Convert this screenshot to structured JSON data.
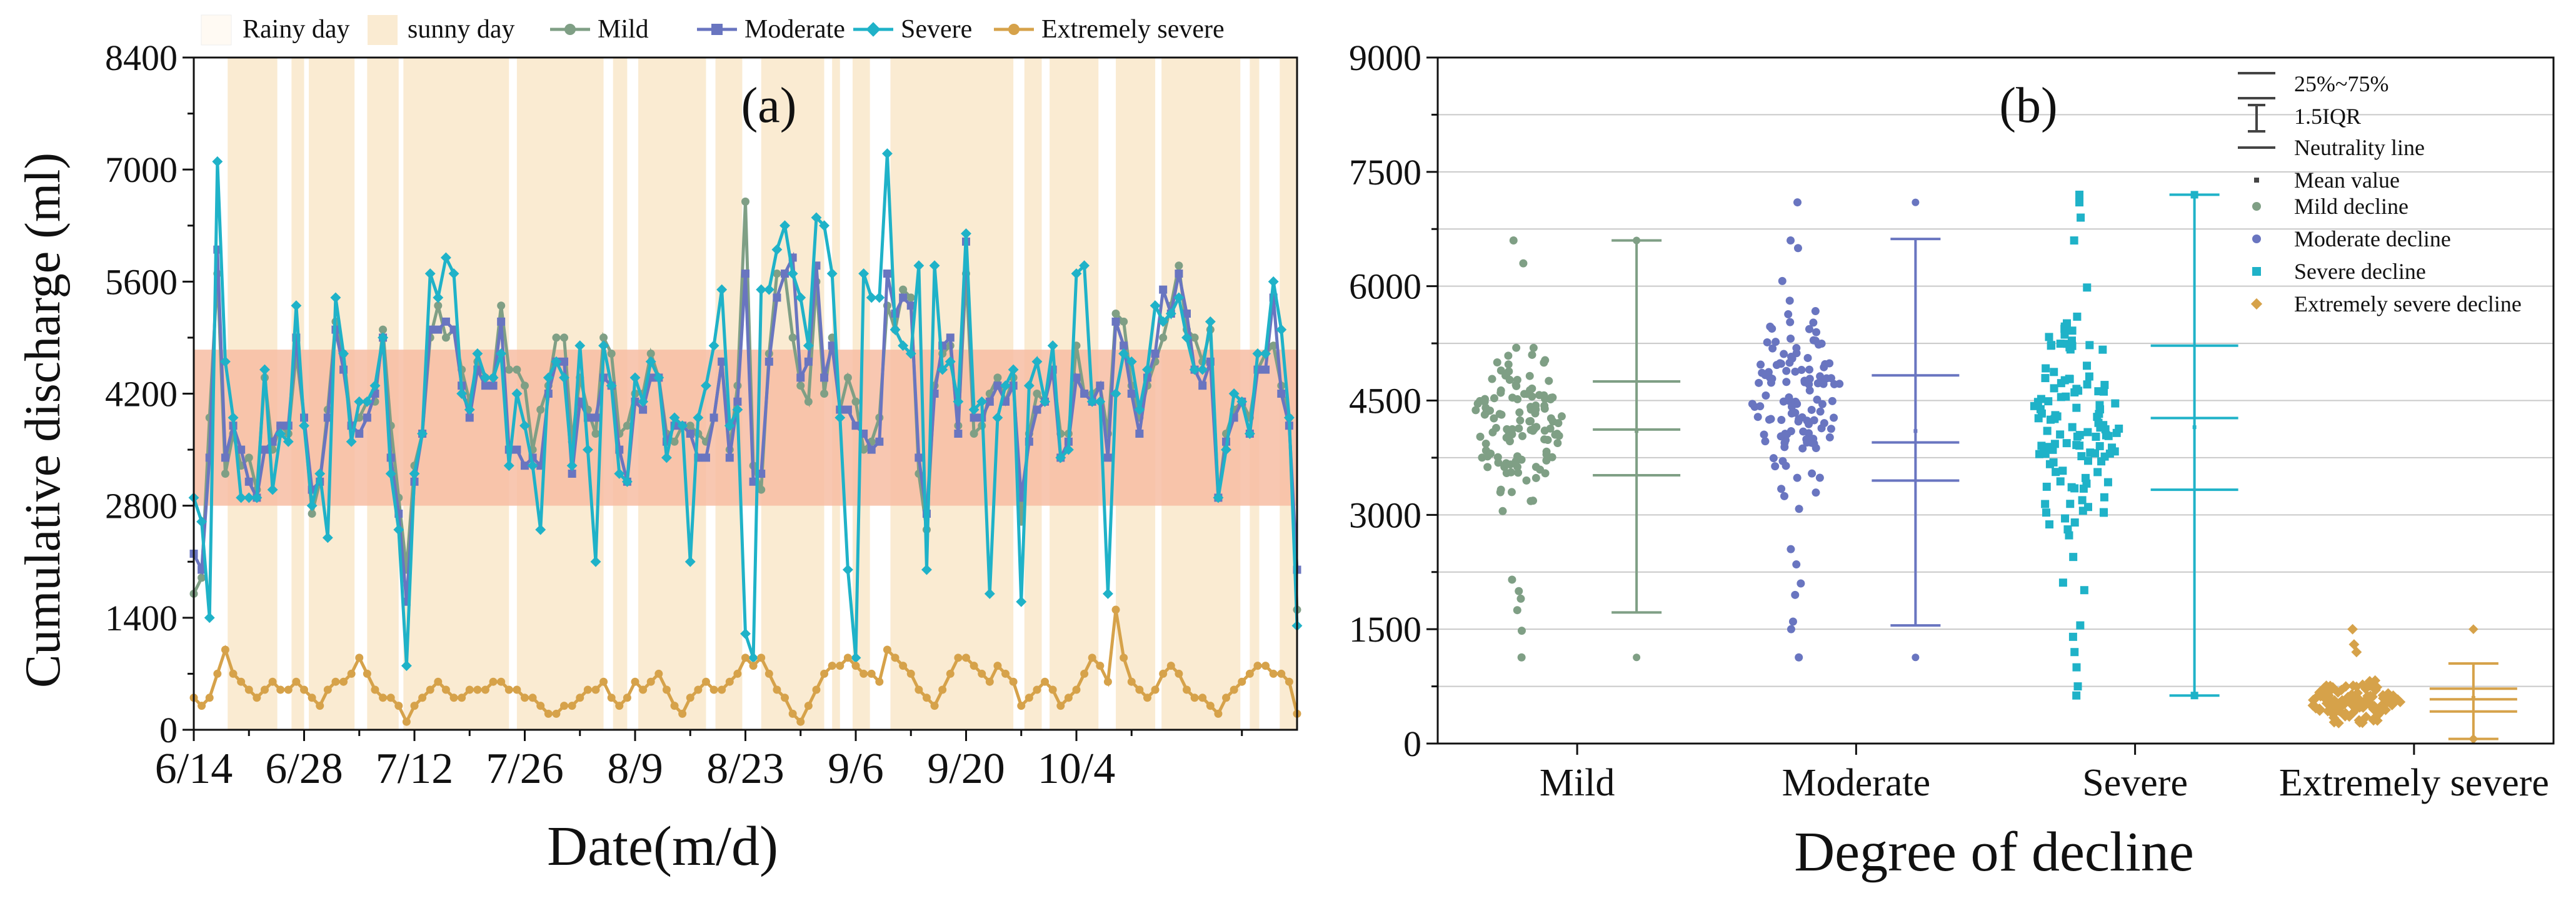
{
  "chart_data": [
    {
      "panel_label": "(a)",
      "type": "line",
      "xlabel": "Date(m/d)",
      "ylabel": "Cumulative discharge (ml)",
      "ylim": [
        0,
        8400
      ],
      "yticks": [
        0,
        1400,
        2800,
        4200,
        5600,
        7000,
        8400
      ],
      "x_day_range": [
        0,
        140
      ],
      "xticks": [
        {
          "day": 0,
          "label": "6/14"
        },
        {
          "day": 14,
          "label": "6/28"
        },
        {
          "day": 28,
          "label": "7/12"
        },
        {
          "day": 42,
          "label": "7/26"
        },
        {
          "day": 56,
          "label": "8/9"
        },
        {
          "day": 70,
          "label": "8/23"
        },
        {
          "day": 84,
          "label": "9/6"
        },
        {
          "day": 98,
          "label": "9/20"
        },
        {
          "day": 112,
          "label": "10/4"
        }
      ],
      "neutral_band": [
        2800,
        4750
      ],
      "rainy_day_label": "Rainy day",
      "sunny_day_label": "sunny day",
      "sunny_day_spans": [
        [
          4.3,
          10.6
        ],
        [
          12.4,
          14.0
        ],
        [
          14.6,
          20.4
        ],
        [
          22.0,
          26.0
        ],
        [
          26.6,
          40.0
        ],
        [
          41.0,
          52.0
        ],
        [
          53.2,
          55.0
        ],
        [
          56.4,
          65.0
        ],
        [
          66.2,
          69.6
        ],
        [
          72.0,
          80.0
        ],
        [
          81.0,
          82.0
        ],
        [
          83.6,
          85.8
        ],
        [
          88.4,
          104.0
        ],
        [
          105.4,
          107.6
        ],
        [
          108.6,
          114.8
        ],
        [
          117.0,
          122.0
        ],
        [
          122.8,
          132.8
        ],
        [
          134.0,
          135.2
        ],
        [
          137.8,
          140.0
        ]
      ],
      "series": [
        {
          "name": "Mild",
          "color": "#7f9f85",
          "marker": "circle",
          "values": [
            1700,
            1900,
            3900,
            5700,
            3200,
            3700,
            3300,
            3400,
            3000,
            4400,
            3500,
            3800,
            3700,
            4700,
            3900,
            2700,
            3100,
            4000,
            5100,
            4700,
            3800,
            3900,
            4100,
            4100,
            5000,
            3800,
            2900,
            2000,
            3300,
            3700,
            4900,
            5300,
            4900,
            5000,
            4500,
            4100,
            4600,
            4400,
            4400,
            5300,
            4500,
            4500,
            4300,
            3500,
            4000,
            4300,
            4900,
            4900,
            3600,
            4400,
            4000,
            3700,
            4900,
            4700,
            3700,
            3800,
            4200,
            4200,
            4700,
            4400,
            3700,
            3600,
            3800,
            3800,
            3700,
            3600,
            3900,
            4600,
            3500,
            4300,
            6600,
            3300,
            3000,
            4700,
            5700,
            5700,
            4900,
            4300,
            4100,
            5600,
            4200,
            4900,
            4000,
            4400,
            4100,
            3500,
            3600,
            3900,
            5300,
            5000,
            5500,
            5400,
            3200,
            2500,
            4300,
            4700,
            4800,
            3800,
            5700,
            3700,
            3800,
            4200,
            4400,
            4100,
            4400,
            2600,
            3700,
            4200,
            4100,
            4500,
            3700,
            3700,
            4800,
            4200,
            4200,
            4300,
            3700,
            5200,
            5100,
            4300,
            3900,
            4300,
            4600,
            4900,
            5300,
            5800,
            5000,
            4900,
            4600,
            5000,
            2900,
            3700,
            4000,
            4100,
            3900,
            4500,
            4700,
            4800,
            4300,
            3900,
            1500
          ]
        },
        {
          "name": "Moderate",
          "color": "#6975c0",
          "marker": "square",
          "values": [
            2200,
            2000,
            3400,
            6000,
            3400,
            3800,
            3500,
            3100,
            2900,
            3500,
            3600,
            3800,
            3800,
            4900,
            3900,
            3000,
            3100,
            3900,
            5000,
            4500,
            3800,
            3700,
            3900,
            4200,
            4900,
            3400,
            2700,
            1600,
            3100,
            3700,
            5000,
            5000,
            5100,
            5000,
            4300,
            3900,
            4500,
            4300,
            4300,
            5100,
            3500,
            3500,
            3300,
            3400,
            3300,
            4200,
            4600,
            4600,
            3200,
            4100,
            3900,
            3900,
            4400,
            4300,
            3500,
            3100,
            4100,
            4000,
            4400,
            4400,
            3600,
            3800,
            3800,
            3700,
            3400,
            3400,
            3900,
            4600,
            3400,
            4100,
            5700,
            3100,
            3200,
            4600,
            5400,
            5700,
            5900,
            4400,
            4600,
            5800,
            4400,
            4800,
            4000,
            4000,
            3800,
            3700,
            3500,
            3600,
            5700,
            5200,
            5400,
            5300,
            3400,
            2700,
            4200,
            4800,
            4900,
            3700,
            6100,
            3900,
            3900,
            4100,
            4300,
            4100,
            4300,
            2900,
            3600,
            4000,
            4100,
            4500,
            3400,
            3600,
            4400,
            4200,
            4100,
            4300,
            3400,
            5100,
            4800,
            4200,
            3700,
            4400,
            4700,
            5500,
            5200,
            5700,
            5200,
            4500,
            4300,
            4600,
            2900,
            3600,
            3900,
            4100,
            3700,
            4500,
            4500,
            5400,
            4200,
            3800,
            2000
          ]
        },
        {
          "name": "Severe",
          "color": "#1fb2c8",
          "marker": "diamond",
          "values": [
            2900,
            2600,
            1400,
            7100,
            4600,
            3900,
            2900,
            2900,
            2900,
            4500,
            3000,
            3700,
            3600,
            5300,
            3800,
            2800,
            3200,
            2400,
            5400,
            4700,
            3600,
            4100,
            4100,
            4300,
            4900,
            3200,
            2500,
            800,
            3200,
            3700,
            5700,
            5400,
            5900,
            5700,
            4200,
            4000,
            4700,
            4400,
            4400,
            4700,
            3300,
            4200,
            3800,
            3300,
            2500,
            4400,
            4600,
            4400,
            3300,
            4800,
            3500,
            2100,
            4800,
            4300,
            3200,
            3100,
            4400,
            4100,
            4600,
            4400,
            3400,
            3900,
            3800,
            2100,
            3900,
            4300,
            4800,
            5500,
            3800,
            4000,
            1200,
            900,
            5500,
            5500,
            6000,
            6300,
            5700,
            5400,
            4800,
            6400,
            6300,
            5700,
            3900,
            2000,
            900,
            5700,
            5400,
            5400,
            7200,
            5000,
            4800,
            4700,
            5800,
            2000,
            5800,
            4500,
            4600,
            4100,
            6200,
            4000,
            4100,
            1700,
            3900,
            4300,
            4500,
            1600,
            4300,
            4600,
            4100,
            4800,
            3400,
            3500,
            5700,
            5800,
            4100,
            4100,
            1700,
            4200,
            4700,
            4600,
            4000,
            4500,
            5300,
            5100,
            5200,
            5400,
            4900,
            4500,
            4500,
            5100,
            2900,
            3500,
            4200,
            4100,
            3700,
            4700,
            4700,
            5600,
            5000,
            3900,
            1300
          ]
        },
        {
          "name": "Extremely severe",
          "color": "#d6a24a",
          "marker": "circle",
          "values": [
            400,
            300,
            400,
            700,
            1000,
            700,
            600,
            500,
            400,
            500,
            600,
            500,
            500,
            600,
            500,
            400,
            300,
            500,
            600,
            600,
            700,
            900,
            700,
            500,
            400,
            400,
            300,
            100,
            300,
            400,
            500,
            600,
            500,
            400,
            400,
            500,
            500,
            500,
            600,
            600,
            500,
            500,
            400,
            400,
            300,
            200,
            200,
            300,
            300,
            400,
            500,
            500,
            600,
            400,
            300,
            400,
            600,
            500,
            600,
            700,
            500,
            300,
            200,
            400,
            500,
            600,
            500,
            500,
            600,
            700,
            900,
            800,
            900,
            700,
            500,
            400,
            200,
            100,
            300,
            500,
            700,
            800,
            800,
            900,
            800,
            700,
            700,
            600,
            1000,
            900,
            800,
            700,
            500,
            400,
            300,
            500,
            700,
            900,
            900,
            800,
            700,
            600,
            800,
            700,
            600,
            300,
            400,
            500,
            600,
            500,
            300,
            400,
            500,
            700,
            900,
            800,
            600,
            1500,
            900,
            600,
            500,
            400,
            500,
            700,
            800,
            700,
            500,
            400,
            400,
            300,
            200,
            400,
            500,
            600,
            700,
            800,
            800,
            700,
            700,
            600,
            200
          ]
        }
      ]
    },
    {
      "panel_label": "(b)",
      "type": "scatter",
      "subtype": "beeswarm_with_box_whiskers",
      "xlabel": "Degree of decline",
      "ylim": [
        0,
        9000
      ],
      "yticks": [
        0,
        1500,
        3000,
        4500,
        6000,
        7500,
        9000
      ],
      "categories": [
        "Mild",
        "Moderate",
        "Severe",
        "Extremely severe"
      ],
      "legend": {
        "iqr_label": "25%~75%",
        "whisker_label": "1.5IQR",
        "neutral_label": "Neutrality line",
        "mean_label": "Mean value",
        "series_labels": [
          "Mild decline",
          "Moderate decline",
          "Severe decline",
          "Extremely severe decline"
        ]
      },
      "groups": [
        {
          "name": "Mild",
          "color": "#7f9f85",
          "marker": "circle",
          "q1": 3520,
          "median": 4120,
          "q3": 4750,
          "mean": 4100,
          "whisker_low": 1720,
          "whisker_high": 6600,
          "min": 1130,
          "max": 6600,
          "spread_band": [
            2700,
            5700
          ],
          "outlier_values": [
            1130,
            1480,
            1750,
            1900,
            2000,
            2150,
            6300,
            6600
          ]
        },
        {
          "name": "Moderate",
          "color": "#6975c0",
          "marker": "circle",
          "q1": 3450,
          "median": 3950,
          "q3": 4830,
          "mean": 4100,
          "whisker_low": 1550,
          "whisker_high": 6620,
          "min": 1130,
          "max": 7100,
          "spread_band": [
            2900,
            6200
          ],
          "outlier_values": [
            1130,
            1500,
            1600,
            1950,
            2100,
            2350,
            2550,
            6500,
            6600,
            7100
          ]
        },
        {
          "name": "Severe",
          "color": "#1fb2c8",
          "marker": "square",
          "q1": 3330,
          "median": 4270,
          "q3": 5220,
          "mean": 4150,
          "whisker_low": 630,
          "whisker_high": 7200,
          "min": 630,
          "max": 7200,
          "spread_band": [
            1800,
            6400
          ],
          "outlier_values": [
            630,
            750,
            1000,
            1200,
            1400,
            1550,
            6600,
            6900,
            7100,
            7200
          ]
        },
        {
          "name": "Extremely severe",
          "color": "#d6a24a",
          "marker": "diamond",
          "q1": 420,
          "median": 580,
          "q3": 720,
          "mean": 600,
          "whisker_low": 60,
          "whisker_high": 1050,
          "min": 60,
          "max": 1500,
          "spread_band": [
            150,
            950
          ],
          "outlier_values": [
            1200,
            1300,
            1500
          ]
        }
      ]
    }
  ]
}
